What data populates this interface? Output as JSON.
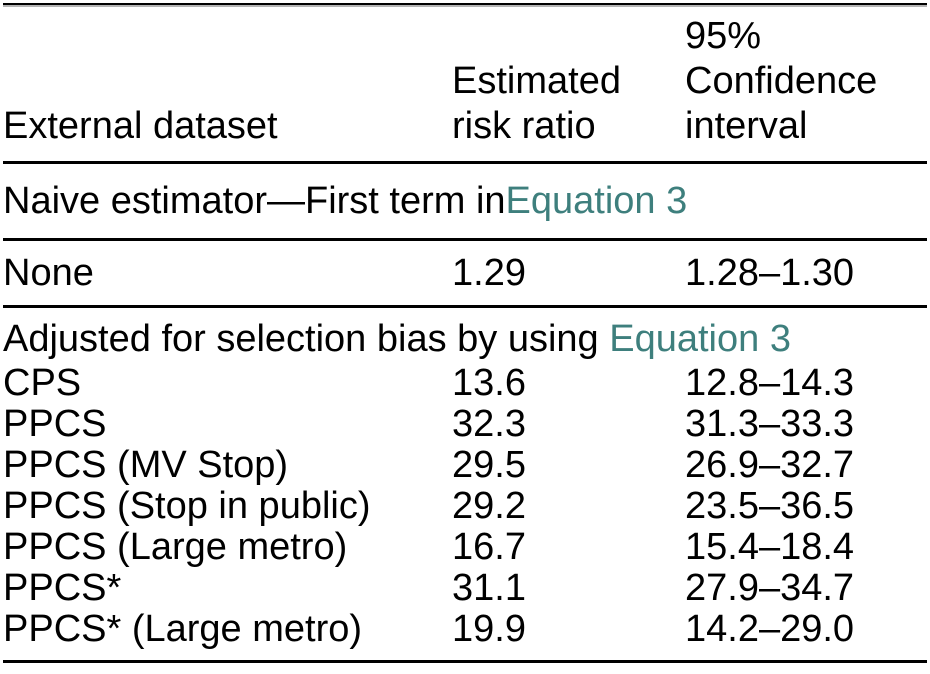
{
  "accent_color": "#3e7f7d",
  "table": {
    "header": {
      "external_dataset": "External dataset",
      "estimated_lines": [
        "Estimated",
        "risk ratio"
      ],
      "ci_lines": [
        "95%",
        "Confidence",
        "interval"
      ]
    },
    "sections": [
      {
        "title_prefix": "Naive estimator—First term in ",
        "title_link": "Equation 3",
        "rows": [
          [
            "None",
            "1.29",
            "1.28–1.30"
          ]
        ]
      },
      {
        "title_prefix": "Adjusted for selection bias by using ",
        "title_link": "Equation 3",
        "rows": [
          [
            "CPS",
            "13.6",
            "12.8–14.3"
          ],
          [
            "PPCS",
            "32.3",
            "31.3–33.3"
          ],
          [
            "PPCS (MV Stop)",
            "29.5",
            "26.9–32.7"
          ],
          [
            "PPCS (Stop in public)",
            "29.2",
            "23.5–36.5"
          ],
          [
            "PPCS (Large metro)",
            "16.7",
            "15.4–18.4"
          ],
          [
            "PPCS*",
            "31.1",
            "27.9–34.7"
          ],
          [
            "PPCS* (Large metro)",
            "19.9",
            "14.2–29.0"
          ]
        ]
      }
    ]
  }
}
